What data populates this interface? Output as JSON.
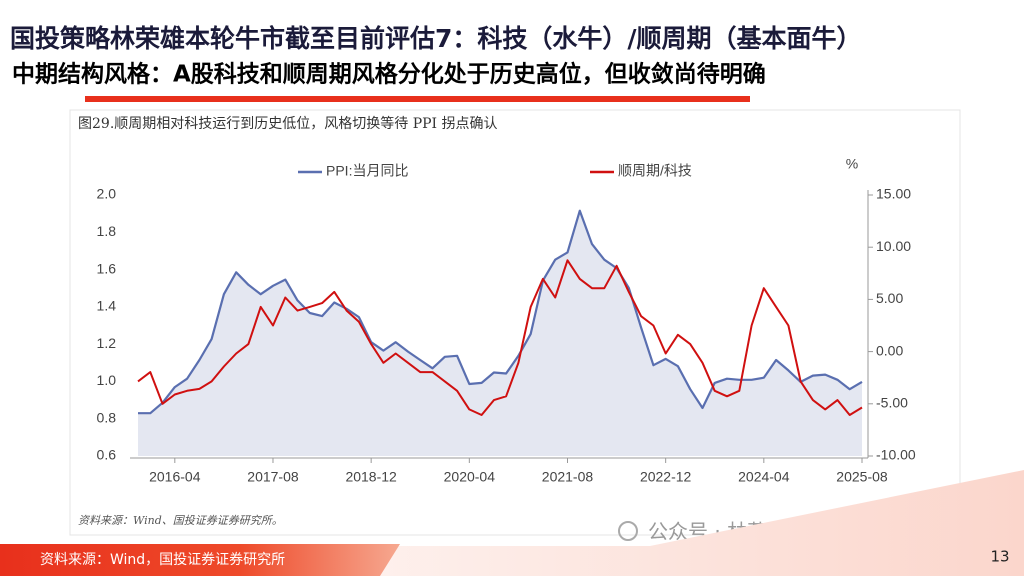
{
  "header": {
    "title": "国投策略林荣雄本轮牛市截至目前评估7：科技（水牛）/顺周期（基本面牛）",
    "subtitle": "中期结构风格：A股科技和顺周期风格分化处于历史高位，但收敛尚待明确"
  },
  "figure_caption": "图29.顺周期相对科技运行到历史低位，风格切换等待 PPI 拐点确认",
  "chart_data": {
    "type": "line",
    "x": [
      "2015-10",
      "2015-12",
      "2016-02",
      "2016-04",
      "2016-06",
      "2016-08",
      "2016-10",
      "2016-12",
      "2017-02",
      "2017-04",
      "2017-06",
      "2017-08",
      "2017-10",
      "2017-12",
      "2018-02",
      "2018-04",
      "2018-06",
      "2018-08",
      "2018-10",
      "2018-12",
      "2019-02",
      "2019-04",
      "2019-06",
      "2019-08",
      "2019-10",
      "2019-12",
      "2020-02",
      "2020-04",
      "2020-06",
      "2020-08",
      "2020-10",
      "2020-12",
      "2021-02",
      "2021-04",
      "2021-06",
      "2021-08",
      "2021-10",
      "2021-12",
      "2022-02",
      "2022-04",
      "2022-06",
      "2022-08",
      "2022-10",
      "2022-12",
      "2023-02",
      "2023-04",
      "2023-06",
      "2023-08",
      "2023-10",
      "2023-12",
      "2024-02",
      "2024-04",
      "2024-06",
      "2024-08",
      "2024-10",
      "2024-12",
      "2025-02",
      "2025-04",
      "2025-06",
      "2025-08"
    ],
    "xticks": [
      "2016-04",
      "2017-08",
      "2018-12",
      "2020-04",
      "2021-08",
      "2022-12",
      "2024-04",
      "2025-08"
    ],
    "series": [
      {
        "name": "PPI:当月同比",
        "color": "#5a6fb0",
        "fill": "#e4e7f1",
        "axis": "y2",
        "values": [
          -5.9,
          -5.9,
          -4.9,
          -3.4,
          -2.6,
          -0.8,
          1.2,
          5.5,
          7.6,
          6.4,
          5.5,
          6.3,
          6.9,
          4.9,
          3.7,
          3.4,
          4.7,
          4.1,
          3.3,
          0.9,
          0.1,
          0.9,
          0.0,
          -0.8,
          -1.6,
          -0.5,
          -0.4,
          -3.1,
          -3.0,
          -2.0,
          -2.1,
          -0.4,
          1.7,
          6.8,
          8.8,
          9.5,
          13.5,
          10.3,
          8.8,
          8.0,
          6.1,
          2.3,
          -1.3,
          -0.7,
          -1.4,
          -3.6,
          -5.4,
          -3.0,
          -2.6,
          -2.7,
          -2.7,
          -2.5,
          -0.8,
          -1.8,
          -2.9,
          -2.3,
          -2.2,
          -2.7,
          -3.6,
          -2.9
        ]
      },
      {
        "name": "顺周期/科技",
        "color": "#d01010",
        "values": [
          1.0,
          1.05,
          0.88,
          0.93,
          0.95,
          0.96,
          1.0,
          1.08,
          1.15,
          1.2,
          1.4,
          1.3,
          1.45,
          1.38,
          1.4,
          1.42,
          1.48,
          1.38,
          1.32,
          1.2,
          1.1,
          1.15,
          1.1,
          1.05,
          1.05,
          1.0,
          0.95,
          0.85,
          0.82,
          0.9,
          0.92,
          1.1,
          1.4,
          1.55,
          1.45,
          1.65,
          1.55,
          1.5,
          1.5,
          1.62,
          1.48,
          1.35,
          1.3,
          1.15,
          1.25,
          1.2,
          1.1,
          0.95,
          0.92,
          0.95,
          1.3,
          1.5,
          1.4,
          1.3,
          1.0,
          0.9,
          0.85,
          0.9,
          0.82,
          0.86
        ]
      }
    ],
    "ylim": [
      0.6,
      2.0
    ],
    "yticks": [
      0.6,
      0.8,
      {
        "value": 1.0,
        "label": "1.0"
      },
      1.2,
      1.4,
      1.6,
      1.8,
      {
        "value": 2.0,
        "label": "2.0"
      }
    ],
    "y2lim": [
      -10,
      15
    ],
    "y2label": "%",
    "y2ticks": [
      {
        "value": -10,
        "label": "-10.00"
      },
      {
        "value": -5,
        "label": "-5.00"
      },
      {
        "value": 0,
        "label": "0.00"
      },
      {
        "value": 5,
        "label": "5.00"
      },
      {
        "value": 10,
        "label": "10.00"
      },
      {
        "value": 15,
        "label": "15.00"
      }
    ]
  },
  "chart_source": "资料来源：Wind、国投证券证券研究所。",
  "footer": {
    "source": "资料来源：Wind，国投证券证券研究所",
    "watermark": "公众号 · 林荣雄策略会客厅",
    "page_number": "13"
  }
}
